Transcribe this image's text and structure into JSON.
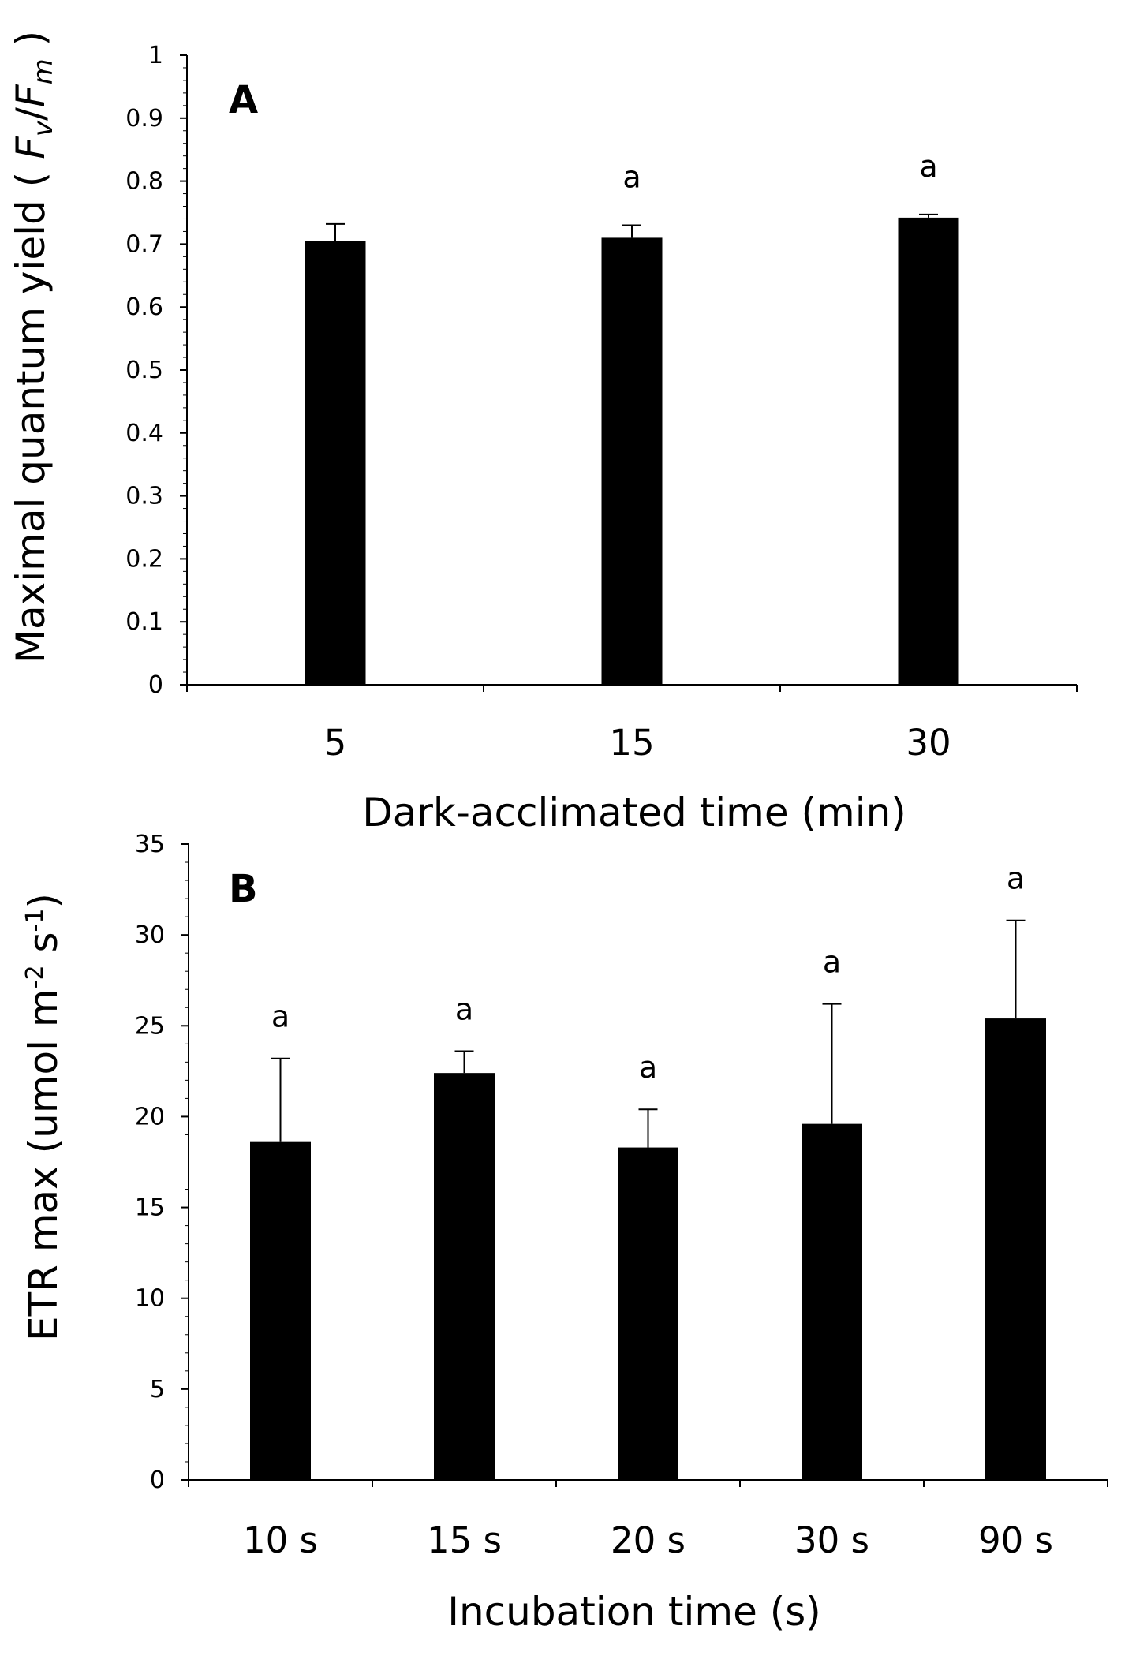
{
  "chart_data": [
    {
      "type": "bar",
      "panel_label": "A",
      "title": "",
      "xlabel": "Dark-acclimated time (min)",
      "ylabel": {
        "prefix": "Maximal quantum yield ( ",
        "fv": "F",
        "fv_sub": "v",
        "slash": "/",
        "fm": "F",
        "fm_sub": "m",
        "suffix": " )"
      },
      "ylim": [
        0,
        1
      ],
      "yticks": [
        "0",
        "0.1",
        "0.2",
        "0.3",
        "0.4",
        "0.5",
        "0.6",
        "0.7",
        "0.8",
        "0.9",
        "1"
      ],
      "categories": [
        "5",
        "15",
        "30"
      ],
      "values": [
        0.705,
        0.71,
        0.742
      ],
      "errors": [
        0.027,
        0.02,
        0.005
      ],
      "annotations": [
        "",
        "a",
        "a"
      ],
      "grid": false,
      "legend": "none"
    },
    {
      "type": "bar",
      "panel_label": "B",
      "title": "",
      "xlabel": "Incubation time (s)",
      "ylabel": {
        "prefix": "ETR max (umol m",
        "sup1": "-2",
        "mid": " s",
        "sup2": "-1",
        "suffix": ")"
      },
      "ylim": [
        0,
        35
      ],
      "yticks": [
        "0",
        "5",
        "10",
        "15",
        "20",
        "25",
        "30",
        "35"
      ],
      "categories": [
        "10 s",
        "15 s",
        "20 s",
        "30 s",
        "90 s"
      ],
      "values": [
        18.6,
        22.4,
        18.3,
        19.6,
        25.4
      ],
      "errors": [
        4.6,
        1.2,
        2.1,
        6.6,
        5.4
      ],
      "annotations": [
        "a",
        "a",
        "a",
        "a",
        "a"
      ],
      "grid": false,
      "legend": "none"
    }
  ]
}
